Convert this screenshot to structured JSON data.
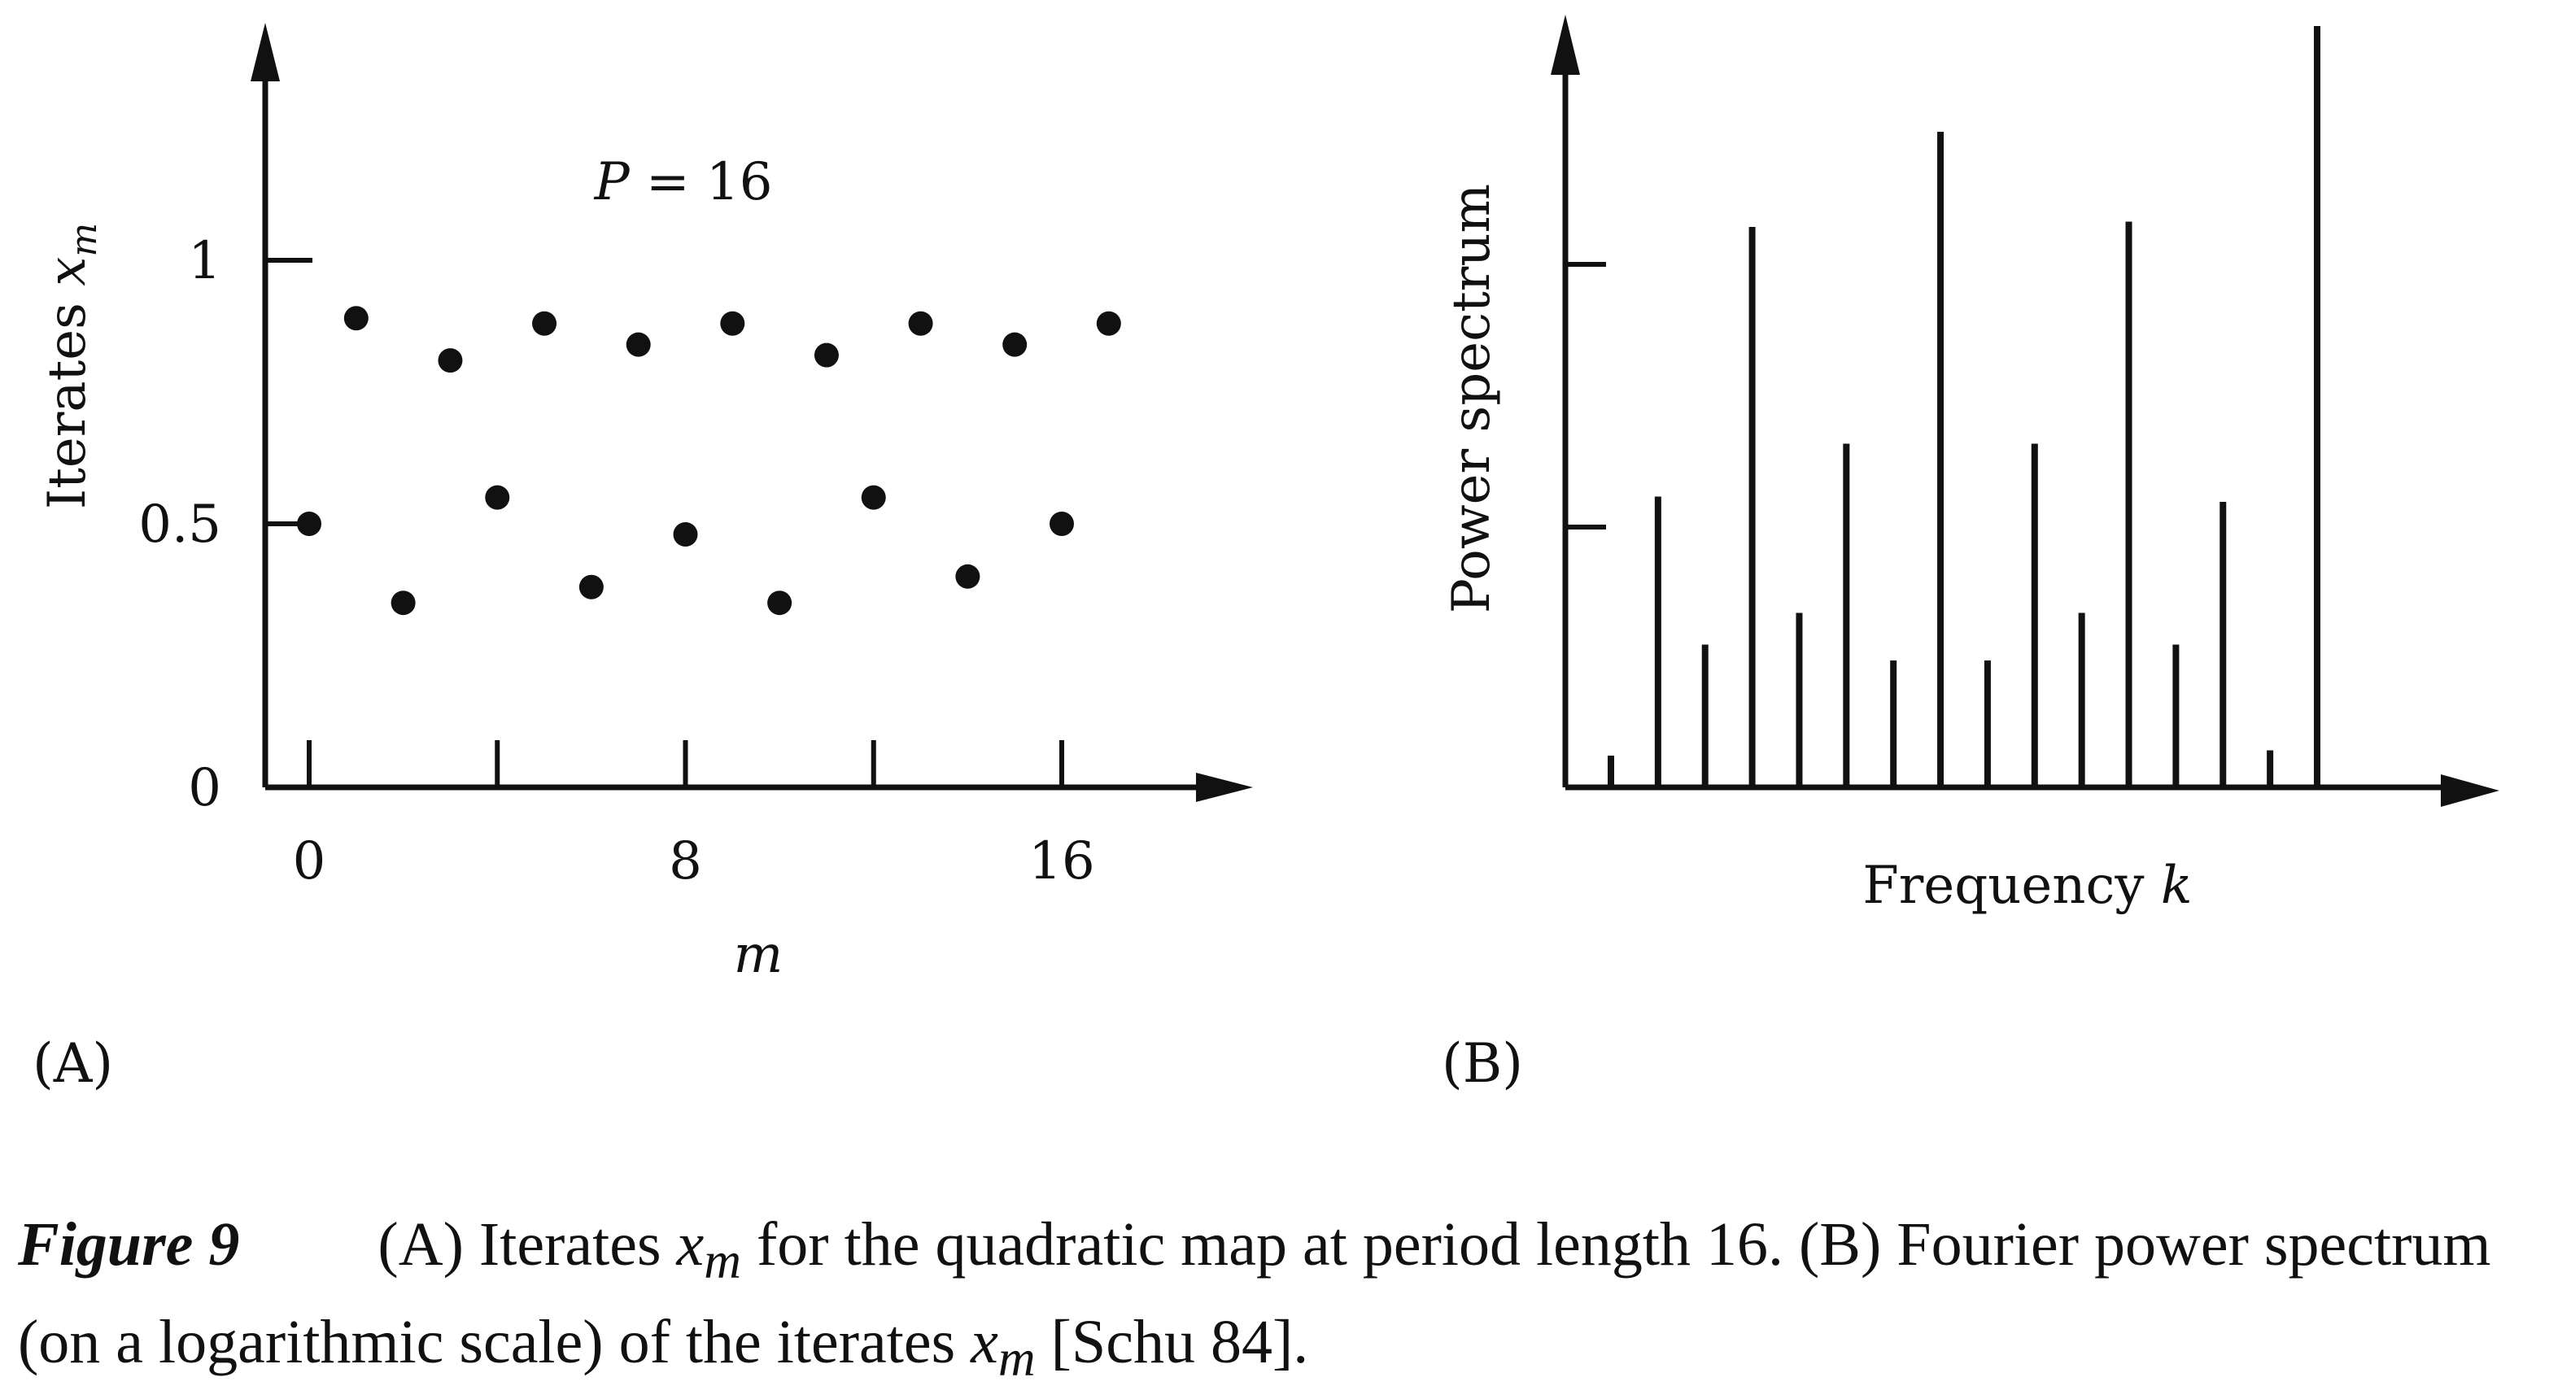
{
  "chart_data": [
    {
      "panel": "(A)",
      "type": "scatter",
      "annotation": "P = 16",
      "annotation_parts": [
        "P",
        " = 16"
      ],
      "xlabel": "m",
      "ylabel": "Iterates x_m",
      "ylabel_parts": [
        "Iterates ",
        "x",
        "m"
      ],
      "xticks": [
        0,
        8,
        16
      ],
      "xtick_labels": [
        "0",
        "8",
        "16"
      ],
      "yticks": [
        0,
        0.5,
        1
      ],
      "ytick_labels": [
        "0",
        "0.5",
        "1"
      ],
      "xlim": [
        0,
        17
      ],
      "ylim": [
        0,
        1.3
      ],
      "grid": false,
      "x": [
        0,
        1,
        2,
        3,
        4,
        5,
        6,
        7,
        8,
        9,
        10,
        11,
        12,
        13,
        14,
        15,
        16,
        17
      ],
      "y": [
        0.5,
        0.89,
        0.35,
        0.81,
        0.55,
        0.88,
        0.38,
        0.84,
        0.48,
        0.88,
        0.35,
        0.82,
        0.55,
        0.88,
        0.4,
        0.84,
        0.5,
        0.88
      ]
    },
    {
      "panel": "(B)",
      "type": "bar",
      "xlabel": "Frequency k",
      "xlabel_parts": [
        "Frequency ",
        "k"
      ],
      "ylabel": "Power spectrum",
      "log_scale": true,
      "grid": false,
      "k": [
        1,
        2,
        3,
        4,
        5,
        6,
        7,
        8,
        9,
        10,
        11,
        12,
        13,
        14,
        15,
        16
      ],
      "values": [
        0.06,
        0.55,
        0.27,
        1.06,
        0.33,
        0.65,
        0.24,
        1.24,
        0.24,
        0.65,
        0.33,
        1.07,
        0.27,
        0.54,
        0.07,
        1.44
      ]
    }
  ],
  "caption": {
    "figure_label": "Figure 9",
    "text_a": "(A) Iterates ",
    "var": "x",
    "sub": "m",
    "text_b": " for the quadratic map at period length 16. (B) Fourier power spectrum (on a logarithmic scale) of the iterates ",
    "text_c": " [Schu 84]."
  }
}
